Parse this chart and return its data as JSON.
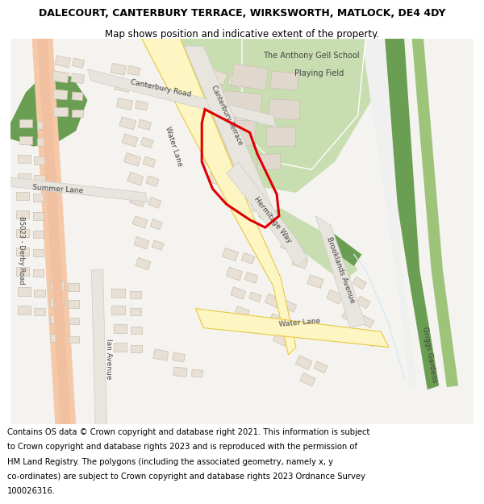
{
  "title_line1": "DALECOURT, CANTERBURY TERRACE, WIRKSWORTH, MATLOCK, DE4 4DY",
  "title_line2": "Map shows position and indicative extent of the property.",
  "footer_text": "Contains OS data © Crown copyright and database right 2021. This information is subject to Crown copyright and database rights 2023 and is reproduced with the permission of HM Land Registry. The polygons (including the associated geometry, namely x, y co-ordinates) are subject to Crown copyright and database rights 2023 Ordnance Survey 100026316.",
  "title_fontsize": 9,
  "subtitle_fontsize": 8.5,
  "footer_fontsize": 7.2,
  "map_bg": "#f5f3f0",
  "road_yellow_fill": "#fdf6c3",
  "road_yellow_edge": "#e8c840",
  "road_orange_fill": "#f5c8a8",
  "road_white_fill": "#ffffff",
  "road_gray_fill": "#e8e4de",
  "green_light": "#c8ddb0",
  "green_mid": "#9ec47a",
  "green_dark": "#6a9e52",
  "green_very_dark": "#4a7a38",
  "building_fill": "#e8e0d4",
  "building_edge": "#c8bfb0",
  "red_polygon": "#dd0000",
  "header_bg": "#ffffff",
  "footer_bg": "#ffffff",
  "text_color": "#444444",
  "blue_water": "#d4eaf5"
}
